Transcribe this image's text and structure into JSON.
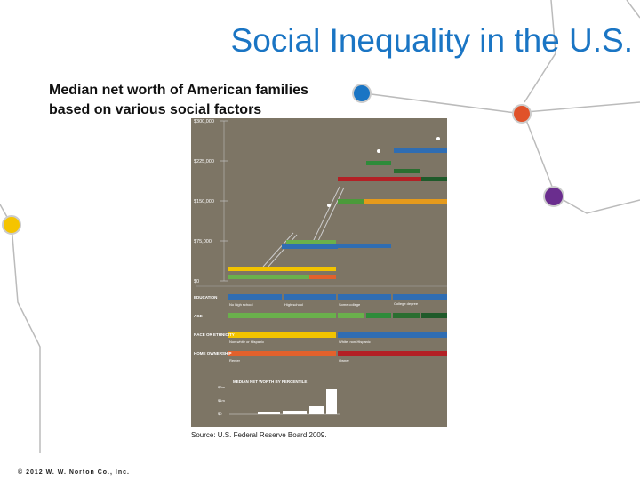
{
  "header": {
    "title": "Social Inequality in the U.S.",
    "subtitle_lines": [
      "Median net worth of American families",
      "based on various social factors"
    ]
  },
  "infographic": {
    "axis_labels": [
      "$300,000",
      "$225,000",
      "$150,000",
      "$75,000",
      "$0"
    ],
    "row_labels": [
      "EDUCATION",
      "AGE",
      "RACE OR ETHNICITY",
      "HOME OWNERSHIP"
    ],
    "education_labels": [
      "No high school",
      "High school",
      "Some college",
      "College degree"
    ],
    "race_labels": [
      "Non-white or Hispanic",
      "White, non-Hispanic"
    ],
    "home_labels": [
      "Renter",
      "Owner"
    ],
    "inset_title": "MEDIAN NET WORTH BY PERCENTILE",
    "inset_axis": [
      "$2m",
      "$1m",
      "$0"
    ]
  },
  "footer": {
    "source": "Source: U.S. Federal Reserve Board 2009.",
    "copyright": "© 2012 W. W. Norton Co., Inc."
  }
}
